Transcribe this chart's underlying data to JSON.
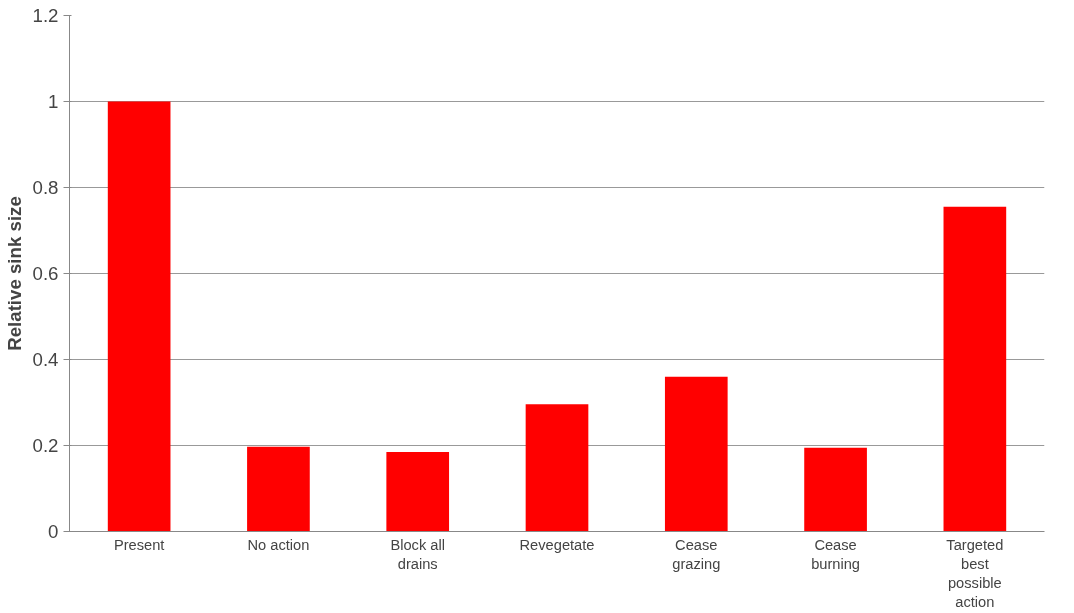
{
  "chart_data": {
    "type": "bar",
    "ylabel": "Relative sink size",
    "categories": [
      "Present",
      "No action",
      "Block all drains",
      "Revegetate",
      "Cease grazing",
      "Cease burning",
      "Targeted best possible action"
    ],
    "values": [
      1.0,
      0.197,
      0.185,
      0.296,
      0.36,
      0.195,
      0.755
    ],
    "color": "#ff0000",
    "ylim": [
      0,
      1.2
    ],
    "yticks": [
      0,
      0.2,
      0.4,
      0.6,
      0.8,
      1,
      1.2
    ],
    "grid": "y"
  }
}
